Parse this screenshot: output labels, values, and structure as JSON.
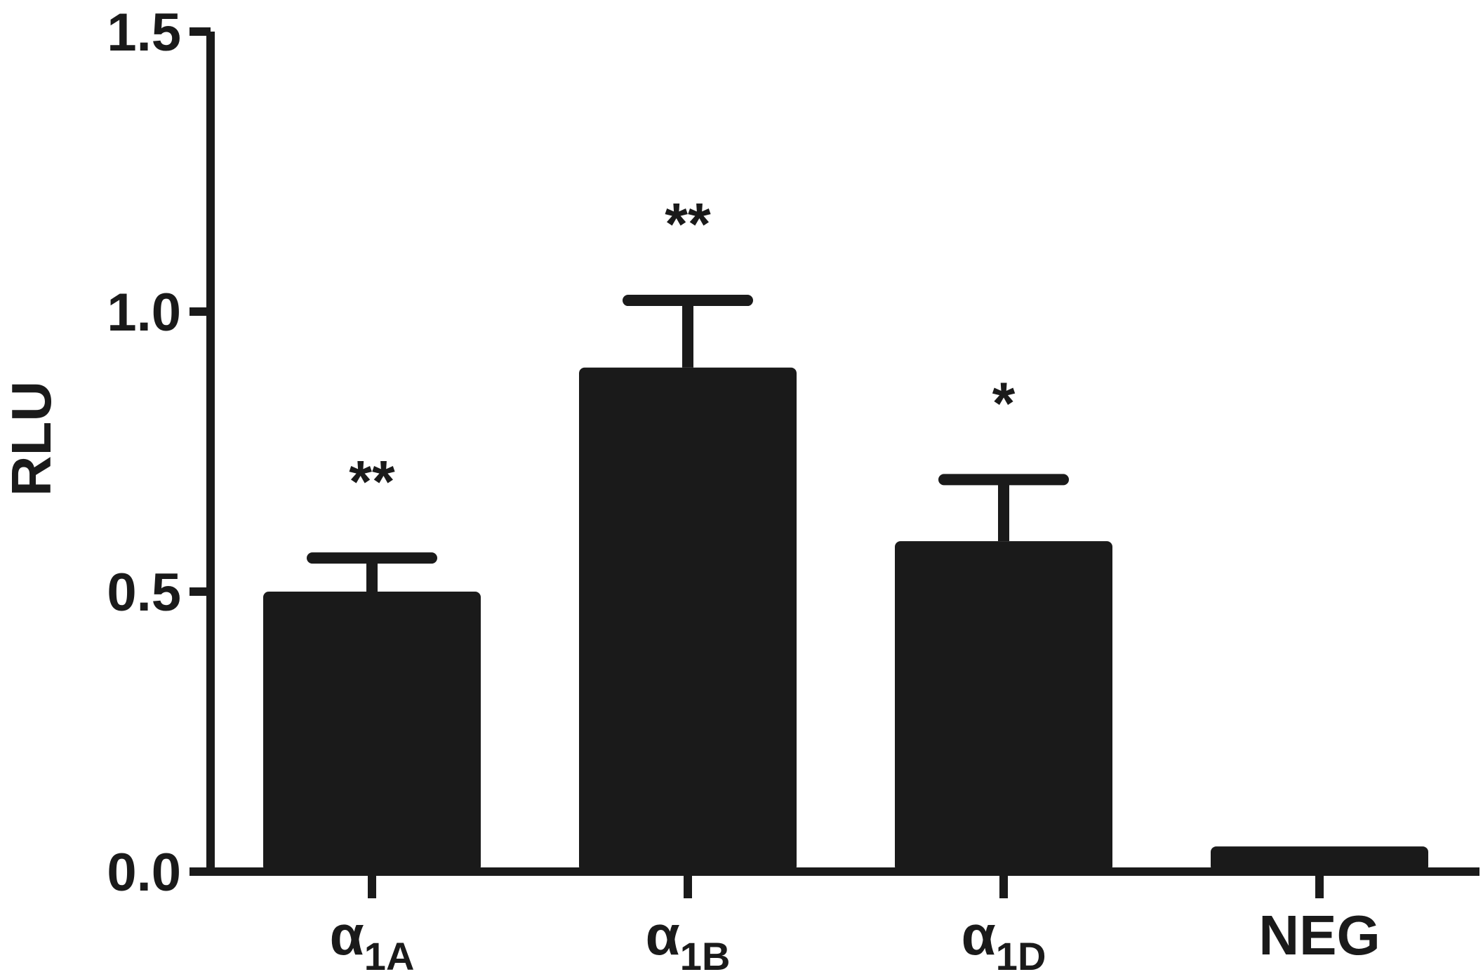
{
  "chart_data": {
    "type": "bar",
    "categories": [
      {
        "main": "α",
        "sub": "1A"
      },
      {
        "main": "α",
        "sub": "1B"
      },
      {
        "main": "α",
        "sub": "1D"
      },
      {
        "main": "NEG",
        "sub": ""
      }
    ],
    "values": [
      0.5,
      0.9,
      0.59,
      0.045
    ],
    "errors": [
      0.06,
      0.12,
      0.11,
      0.005
    ],
    "significance": [
      "**",
      "**",
      "*",
      ""
    ],
    "ylabel": "RLU",
    "xlabel": "",
    "ylim": [
      0,
      1.5
    ],
    "yticks": [
      "0.0",
      "0.5",
      "1.0",
      "1.5"
    ],
    "bar_color": "#1a1a1a",
    "grid": false
  }
}
